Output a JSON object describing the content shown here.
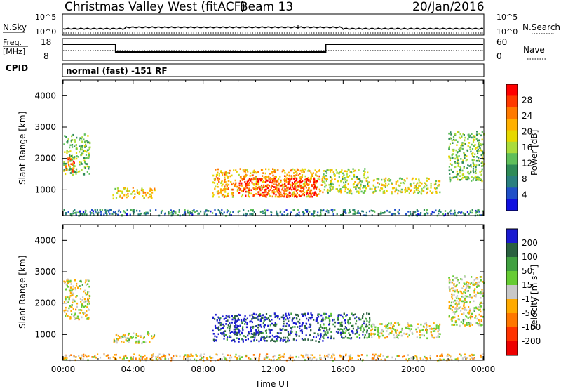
{
  "header": {
    "title": "Christmas Valley West (fitACF)",
    "beam": "Beam 13",
    "date": "20/Jan/2016"
  },
  "params": {
    "nsky_label": "N.Sky",
    "nsky_tick_top": "10^5",
    "nsky_tick_bottom": "10^0",
    "nsearch_label": "N.Search",
    "nsearch_tick_top": "10^5",
    "nsearch_tick_bottom": "10^0",
    "freq_label_1": "Freq.",
    "freq_label_2": "[MHz]",
    "freq_tick_top": "18",
    "freq_tick_bottom": "8",
    "nave_label": "Nave",
    "nave_tick_top": "60",
    "nave_tick_bottom": "0",
    "cpid_label": "CPID",
    "cpid_value": "normal (fast) -151 RF",
    "freq_segments": [
      {
        "start_h": 0.0,
        "end_h": 3.0,
        "level": "high"
      },
      {
        "start_h": 3.0,
        "end_h": 15.0,
        "level": "low"
      },
      {
        "start_h": 15.0,
        "end_h": 24.0,
        "level": "high"
      }
    ]
  },
  "chart_data": [
    {
      "type": "heatmap",
      "panel": "power",
      "ylabel": "Slant Range [km]",
      "yticks": [
        "1000",
        "2000",
        "3000",
        "4000"
      ],
      "ylim": [
        180,
        4500
      ],
      "xlim": [
        0,
        24
      ],
      "colorbar_label": "Power [dB]",
      "colorbar_ticks": [
        "28",
        "24",
        "20",
        "16",
        "12",
        "8",
        "4"
      ],
      "colorbar_colors": [
        "#ff0000",
        "#ff3a00",
        "#ff7a00",
        "#ffb000",
        "#e6d800",
        "#aadc3c",
        "#5fbf5a",
        "#2e8b57",
        "#2a7f7f",
        "#2050c8",
        "#1010e0"
      ],
      "regions": [
        {
          "t0": 0.0,
          "t1": 1.5,
          "r0": 1500,
          "r1": 2800,
          "value": 14
        },
        {
          "t0": 0.1,
          "t1": 0.6,
          "r0": 1600,
          "r1": 2100,
          "value": 26
        },
        {
          "t0": 2.8,
          "t1": 5.2,
          "r0": 750,
          "r1": 1100,
          "value": 20
        },
        {
          "t0": 8.5,
          "t1": 14.8,
          "r0": 800,
          "r1": 1700,
          "value": 22
        },
        {
          "t0": 10.0,
          "t1": 14.5,
          "r0": 800,
          "r1": 1400,
          "value": 29
        },
        {
          "t0": 14.8,
          "t1": 17.5,
          "r0": 900,
          "r1": 1700,
          "value": 16
        },
        {
          "t0": 17.5,
          "t1": 21.5,
          "r0": 900,
          "r1": 1400,
          "value": 18
        },
        {
          "t0": 22.0,
          "t1": 24.0,
          "r0": 1300,
          "r1": 2900,
          "value": 14
        },
        {
          "t0": 0.0,
          "t1": 24.0,
          "r0": 200,
          "r1": 400,
          "value": 8
        }
      ]
    },
    {
      "type": "heatmap",
      "panel": "velocity",
      "ylabel": "Slant Range [km]",
      "xlabel": "Time UT",
      "xticks": [
        "00:00",
        "04:00",
        "08:00",
        "12:00",
        "16:00",
        "20:00",
        "00:00"
      ],
      "yticks": [
        "1000",
        "2000",
        "3000",
        "4000"
      ],
      "ylim": [
        180,
        4500
      ],
      "xlim": [
        0,
        24
      ],
      "colorbar_label": "Velocity [m s⁻¹]",
      "colorbar_ticks": [
        "200",
        "100",
        "50",
        "15",
        "-15",
        "-50",
        "-100",
        "-200"
      ],
      "colorbar_colors": [
        "#1a1ad0",
        "#2a6040",
        "#40a040",
        "#66cc33",
        "#c8c8c8",
        "#ffaa00",
        "#ff7700",
        "#ff3300",
        "#ee0000"
      ],
      "regions": [
        {
          "t0": 0.0,
          "t1": 1.5,
          "r0": 1500,
          "r1": 2800,
          "value": 0
        },
        {
          "t0": 2.8,
          "t1": 5.2,
          "r0": 750,
          "r1": 1100,
          "value": 0
        },
        {
          "t0": 8.5,
          "t1": 14.8,
          "r0": 800,
          "r1": 1700,
          "value": 200
        },
        {
          "t0": 14.8,
          "t1": 17.5,
          "r0": 900,
          "r1": 1700,
          "value": 150
        },
        {
          "t0": 17.5,
          "t1": 21.5,
          "r0": 900,
          "r1": 1400,
          "value": 0
        },
        {
          "t0": 22.0,
          "t1": 24.0,
          "r0": 1300,
          "r1": 2900,
          "value": 0
        },
        {
          "t0": 0.0,
          "t1": 24.0,
          "r0": 200,
          "r1": 400,
          "value": -40
        }
      ]
    }
  ]
}
